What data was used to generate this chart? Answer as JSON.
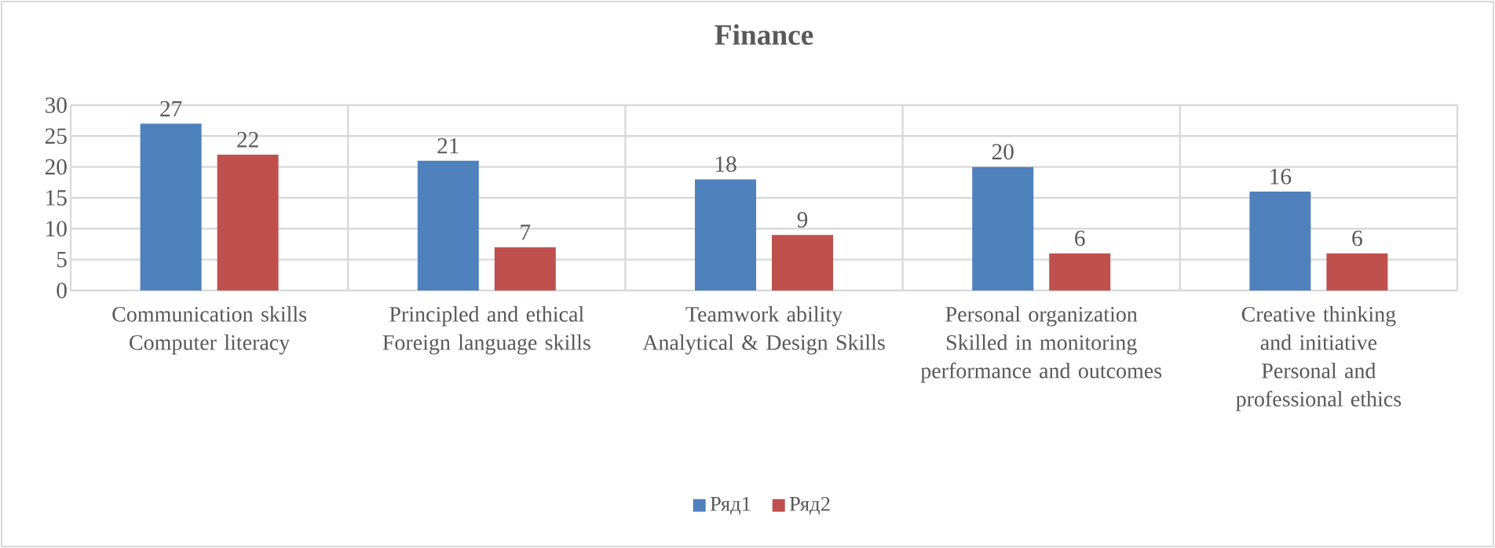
{
  "chart_data": {
    "type": "bar",
    "title": "Finance",
    "categories": [
      "Communication skills\nComputer literacy",
      "Principled and ethical\nForeign language skills",
      "Teamwork ability\nAnalytical & Design Skills",
      "Personal organization\nSkilled in monitoring performance and outcomes",
      "Creative thinking and initiative\nPersonal and professional ethics"
    ],
    "series": [
      {
        "name": "Ряд1",
        "color": "#4f81bd",
        "values": [
          27,
          21,
          18,
          20,
          16
        ]
      },
      {
        "name": "Ряд2",
        "color": "#c0504d",
        "values": [
          22,
          7,
          9,
          6,
          6
        ]
      }
    ],
    "ylim": [
      0,
      30
    ],
    "yticks": [
      0,
      5,
      10,
      15,
      20,
      25,
      30
    ],
    "grid": true,
    "legend": "bottom",
    "data_labels": true
  }
}
